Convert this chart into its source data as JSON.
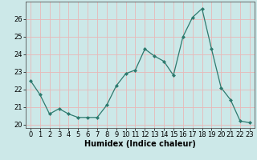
{
  "x": [
    0,
    1,
    2,
    3,
    4,
    5,
    6,
    7,
    8,
    9,
    10,
    11,
    12,
    13,
    14,
    15,
    16,
    17,
    18,
    19,
    20,
    21,
    22,
    23
  ],
  "y": [
    22.5,
    21.7,
    20.6,
    20.9,
    20.6,
    20.4,
    20.4,
    20.4,
    21.1,
    22.2,
    22.9,
    23.1,
    24.3,
    23.9,
    23.6,
    22.8,
    25.0,
    26.1,
    26.6,
    24.3,
    22.1,
    21.4,
    20.2,
    20.1
  ],
  "line_color": "#2d7a6e",
  "marker": "D",
  "marker_size": 2,
  "bg_color": "#cce8e8",
  "grid_color": "#e8b8b8",
  "xlabel": "Humidex (Indice chaleur)",
  "ylim": [
    19.8,
    27.0
  ],
  "xlim": [
    -0.5,
    23.5
  ],
  "yticks": [
    20,
    21,
    22,
    23,
    24,
    25,
    26
  ],
  "xticks": [
    0,
    1,
    2,
    3,
    4,
    5,
    6,
    7,
    8,
    9,
    10,
    11,
    12,
    13,
    14,
    15,
    16,
    17,
    18,
    19,
    20,
    21,
    22,
    23
  ],
  "xlabel_fontsize": 7,
  "tick_fontsize": 6,
  "line_width": 0.9,
  "spine_color": "#555555"
}
